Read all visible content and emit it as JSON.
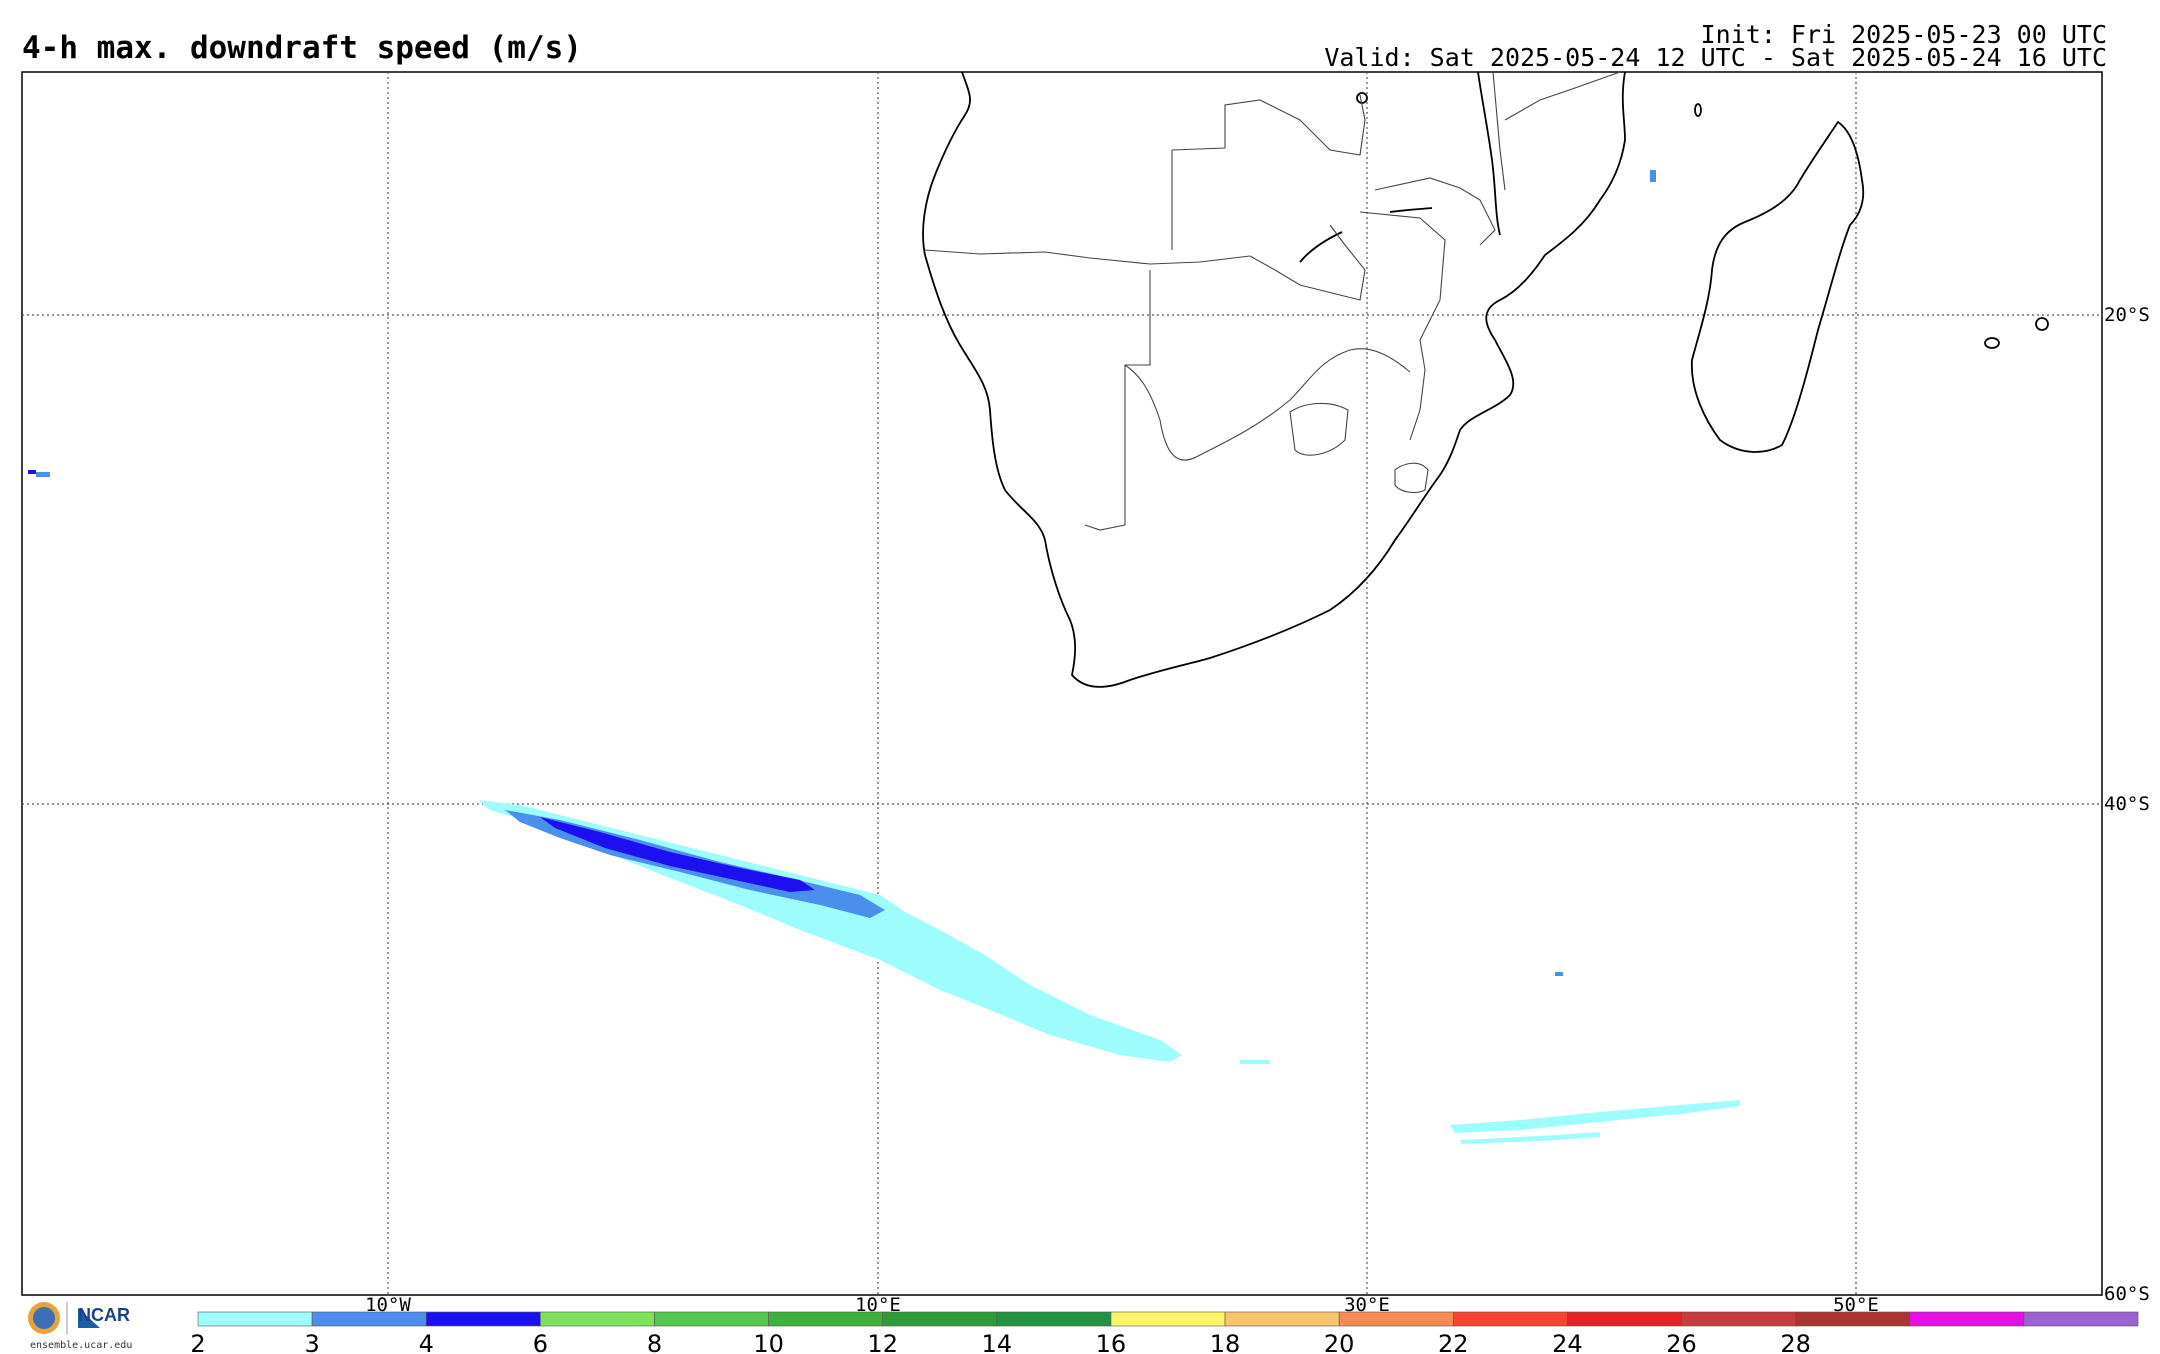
{
  "header": {
    "title": "4-h max. downdraft speed (m/s)",
    "init": "Init: Fri 2025-05-23 00 UTC",
    "valid": "Valid: Sat 2025-05-24 12 UTC - Sat 2025-05-24 16 UTC"
  },
  "map": {
    "lat_labels": [
      "20°S",
      "40°S",
      "60°S"
    ],
    "lon_labels": [
      "10°W",
      "10°E",
      "30°E",
      "50°E"
    ],
    "land_outline_color": "#000000",
    "gridline_color": "#555555"
  },
  "colorbar": {
    "ticks": [
      "2",
      "3",
      "4",
      "6",
      "8",
      "10",
      "12",
      "14",
      "16",
      "18",
      "20",
      "22",
      "24",
      "26",
      "28"
    ],
    "colors": [
      "#9ffcfc",
      "#4b8fee",
      "#1c10f0",
      "#7be25a",
      "#52c94a",
      "#3cb23a",
      "#2e9b3b",
      "#219343",
      "#fbf464",
      "#fac46a",
      "#f98a53",
      "#f8442d",
      "#e3232a",
      "#c63c3d",
      "#a93431",
      "#e410e6",
      "#9b62d2"
    ]
  },
  "logo": {
    "org_left": "NSF",
    "org_right": "NCAR",
    "url": "ensemble.ucar.edu"
  }
}
